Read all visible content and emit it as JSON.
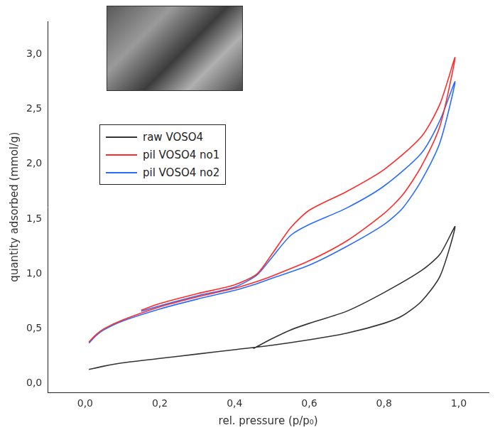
{
  "chart_data": {
    "type": "line",
    "x_label": "rel. pressure (p/p₀)",
    "y_label": "quantity adsorbed (mmol/g)",
    "xlim": [
      -0.1,
      1.08
    ],
    "ylim": [
      -0.08,
      3.3
    ],
    "xticks": [
      {
        "value": 0,
        "label": "0,0"
      },
      {
        "value": 0.2,
        "label": "0,2"
      },
      {
        "value": 0.4,
        "label": "0,4"
      },
      {
        "value": 0.6,
        "label": "0,6"
      },
      {
        "value": 0.8,
        "label": "0,8"
      },
      {
        "value": 1,
        "label": "1,0"
      }
    ],
    "yticks": [
      {
        "value": 0,
        "label": "0,0"
      },
      {
        "value": 0.5,
        "label": "0,5"
      },
      {
        "value": 1,
        "label": "1,0"
      },
      {
        "value": 1.5,
        "label": "1,5"
      },
      {
        "value": 2,
        "label": "2,0"
      },
      {
        "value": 2.5,
        "label": "2,5"
      },
      {
        "value": 3,
        "label": "3,0"
      }
    ],
    "grid": false,
    "legend": "upper left",
    "marker": "none",
    "line_style": "solid",
    "series": [
      {
        "name": "raw VOSO4",
        "color": "#333333",
        "x": [
          0.01,
          0.05,
          0.1,
          0.2,
          0.3,
          0.4,
          0.5,
          0.6,
          0.7,
          0.8,
          0.85,
          0.9,
          0.95,
          0.99,
          0.95,
          0.9,
          0.8,
          0.7,
          0.6,
          0.55,
          0.5,
          0.45
        ],
        "values": [
          0.13,
          0.16,
          0.19,
          0.23,
          0.27,
          0.31,
          0.35,
          0.4,
          0.46,
          0.55,
          0.62,
          0.75,
          0.98,
          1.43,
          1.18,
          1.03,
          0.83,
          0.66,
          0.55,
          0.49,
          0.41,
          0.32
        ]
      },
      {
        "name": "pil VOSO4 no1",
        "color": "#ff2a2a",
        "x": [
          0.01,
          0.03,
          0.05,
          0.1,
          0.2,
          0.3,
          0.4,
          0.45,
          0.5,
          0.6,
          0.7,
          0.8,
          0.85,
          0.9,
          0.95,
          0.99,
          0.95,
          0.9,
          0.8,
          0.7,
          0.6,
          0.55,
          0.5,
          0.46,
          0.4,
          0.3,
          0.2,
          0.15
        ],
        "values": [
          0.38,
          0.45,
          0.5,
          0.58,
          0.7,
          0.79,
          0.87,
          0.92,
          0.98,
          1.12,
          1.3,
          1.55,
          1.72,
          1.98,
          2.35,
          2.97,
          2.55,
          2.25,
          1.95,
          1.75,
          1.58,
          1.42,
          1.18,
          1.0,
          0.9,
          0.82,
          0.73,
          0.67
        ]
      },
      {
        "name": "pil VOSO4 no2",
        "color": "#2a6cff",
        "x": [
          0.01,
          0.03,
          0.05,
          0.1,
          0.2,
          0.3,
          0.4,
          0.45,
          0.5,
          0.6,
          0.7,
          0.8,
          0.85,
          0.9,
          0.95,
          0.99,
          0.95,
          0.9,
          0.8,
          0.7,
          0.6,
          0.55,
          0.5,
          0.46,
          0.4,
          0.3,
          0.2,
          0.15
        ],
        "values": [
          0.37,
          0.44,
          0.49,
          0.57,
          0.68,
          0.77,
          0.85,
          0.9,
          0.96,
          1.08,
          1.25,
          1.45,
          1.6,
          1.85,
          2.2,
          2.75,
          2.4,
          2.1,
          1.8,
          1.6,
          1.45,
          1.35,
          1.15,
          0.99,
          0.88,
          0.8,
          0.71,
          0.66
        ]
      }
    ]
  }
}
